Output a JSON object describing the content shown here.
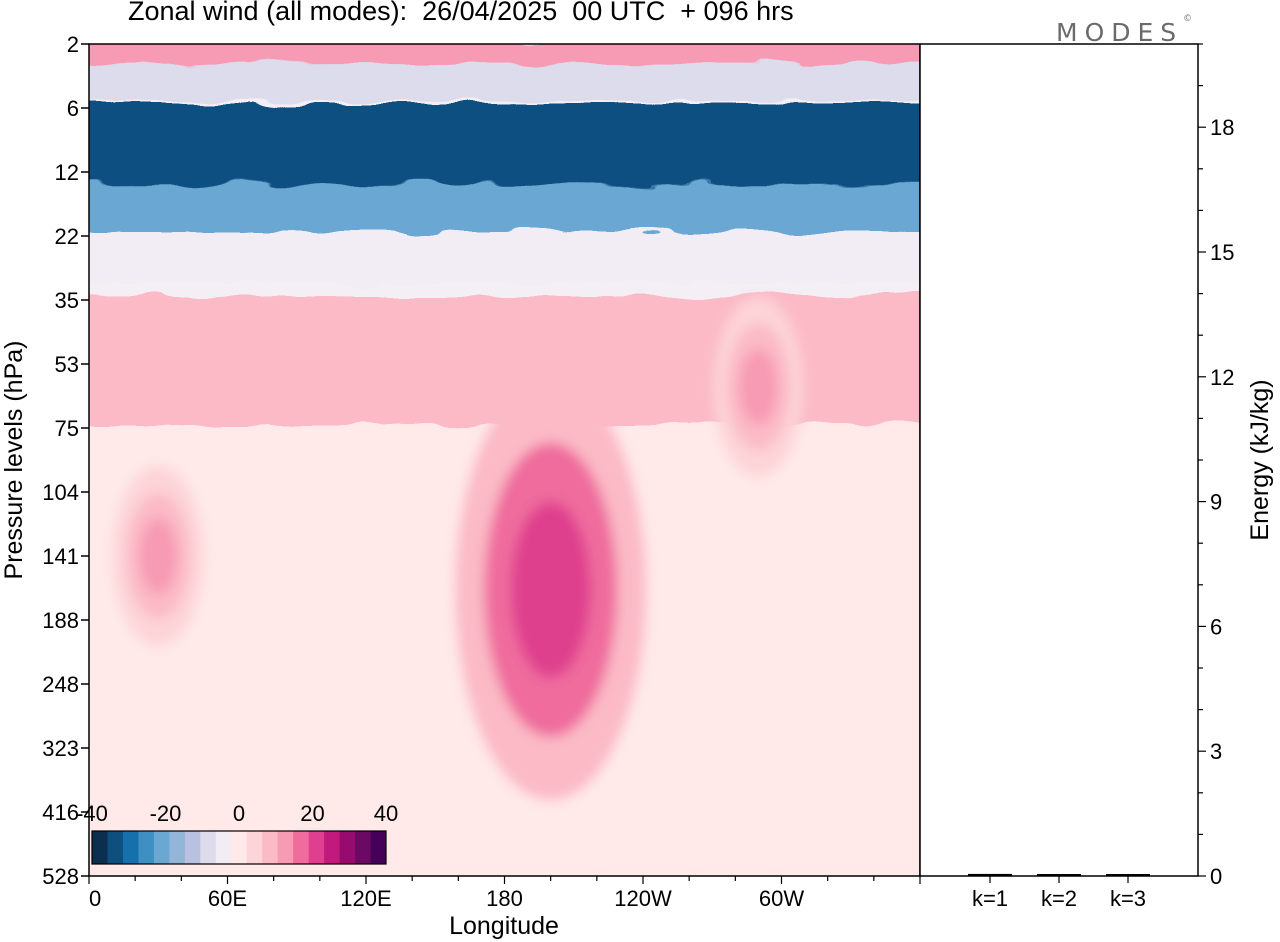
{
  "header": {
    "title": "Zonal wind (all modes):  26/04/2025  00 UTC  + 096 hrs",
    "logo": "MODES",
    "logo_mark": "©"
  },
  "chart_data": [
    {
      "type": "heatmap",
      "title": "Zonal wind (all modes):  26/04/2025  00 UTC  + 096 hrs",
      "xlabel": "Longitude",
      "ylabel": "Pressure levels (hPa)",
      "x_ticks": [
        "0",
        "60E",
        "120E",
        "180",
        "120W",
        "60W"
      ],
      "y_ticks": [
        "2",
        "6",
        "12",
        "22",
        "35",
        "53",
        "75",
        "104",
        "141",
        "188",
        "248",
        "323",
        "416",
        "528"
      ],
      "y_scale": "log",
      "colorbar": {
        "labels": [
          "-40",
          "-20",
          "0",
          "20",
          "40"
        ],
        "range": [
          -40,
          40
        ],
        "placement": "bottom-left",
        "colors": [
          "#0d2f4f",
          "#0e4f80",
          "#1570ab",
          "#3e8fc2",
          "#6aa8d3",
          "#93b5d8",
          "#b8c1df",
          "#dcdcec",
          "#f2ecf5",
          "#ffe9e9",
          "#fdd4d8",
          "#fbbac6",
          "#f79ab4",
          "#ef6c9d",
          "#df3f8e",
          "#c21a7c",
          "#980b6e",
          "#6b0a65",
          "#45005a"
        ]
      },
      "description_bands": [
        {
          "pressure": [
            2,
            3
          ],
          "wind": 12
        },
        {
          "pressure": [
            3,
            5
          ],
          "wind": -8
        },
        {
          "pressure": [
            6,
            14
          ],
          "wind": -32
        },
        {
          "pressure": [
            14,
            22
          ],
          "wind": -20
        },
        {
          "pressure": [
            22,
            30
          ],
          "wind": -6
        },
        {
          "pressure": [
            35,
            75
          ],
          "wind": 8
        },
        {
          "pressure": [
            75,
            528
          ],
          "wind": 2
        }
      ],
      "features": [
        {
          "name": "jet core",
          "lon_center": 200,
          "pressure_center": 150,
          "wind": 20
        },
        {
          "name": "secondary max",
          "lon_center": 30,
          "pressure_center": 141,
          "wind": 12
        },
        {
          "name": "upper max 60W",
          "lon_center": 290,
          "pressure_center": 60,
          "wind": 12
        }
      ]
    },
    {
      "type": "bar",
      "ylabel": "Energy (kJ/kg)",
      "y_ticks": [
        "0",
        "3",
        "6",
        "9",
        "12",
        "15",
        "18"
      ],
      "ylim": [
        0,
        20
      ],
      "categories": [
        "k=1",
        "k=2",
        "k=3"
      ],
      "values": [
        0.05,
        0.02,
        0.02
      ]
    }
  ]
}
